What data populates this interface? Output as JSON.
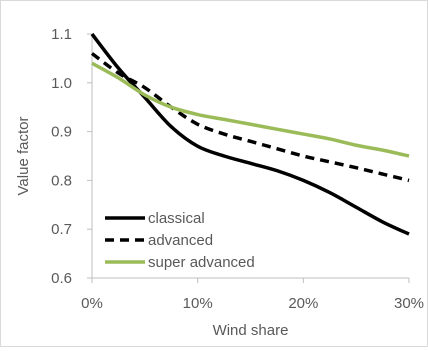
{
  "chart_data": {
    "type": "line",
    "xlabel": "Wind share",
    "ylabel": "Value factor",
    "x": [
      0,
      2.5,
      5,
      7.5,
      10,
      12.5,
      15,
      17.5,
      20,
      22.5,
      25,
      27.5,
      30
    ],
    "x_tick_values": [
      0,
      10,
      20,
      30
    ],
    "x_tick_labels": [
      "0%",
      "10%",
      "20%",
      "30%"
    ],
    "xlim": [
      0,
      30
    ],
    "y_tick_values": [
      0.6,
      0.7,
      0.8,
      0.9,
      1.0,
      1.1
    ],
    "y_tick_labels": [
      "0.6",
      "0.7",
      "0.8",
      "0.9",
      "1.0",
      "1.1"
    ],
    "ylim": [
      0.6,
      1.1
    ],
    "grid": false,
    "legend_position": "bottom-left",
    "series": [
      {
        "name": "classical",
        "color": "#000000",
        "style": "solid",
        "values": [
          1.1,
          1.03,
          0.97,
          0.91,
          0.87,
          0.85,
          0.835,
          0.82,
          0.8,
          0.775,
          0.745,
          0.715,
          0.69
        ]
      },
      {
        "name": "advanced",
        "color": "#000000",
        "style": "dashed",
        "values": [
          1.06,
          1.02,
          0.99,
          0.95,
          0.915,
          0.895,
          0.88,
          0.865,
          0.85,
          0.838,
          0.826,
          0.813,
          0.8
        ]
      },
      {
        "name": "super advanced",
        "color": "#9BBB59",
        "style": "solid",
        "values": [
          1.04,
          1.01,
          0.975,
          0.95,
          0.935,
          0.925,
          0.915,
          0.905,
          0.895,
          0.885,
          0.872,
          0.862,
          0.85
        ]
      }
    ]
  }
}
